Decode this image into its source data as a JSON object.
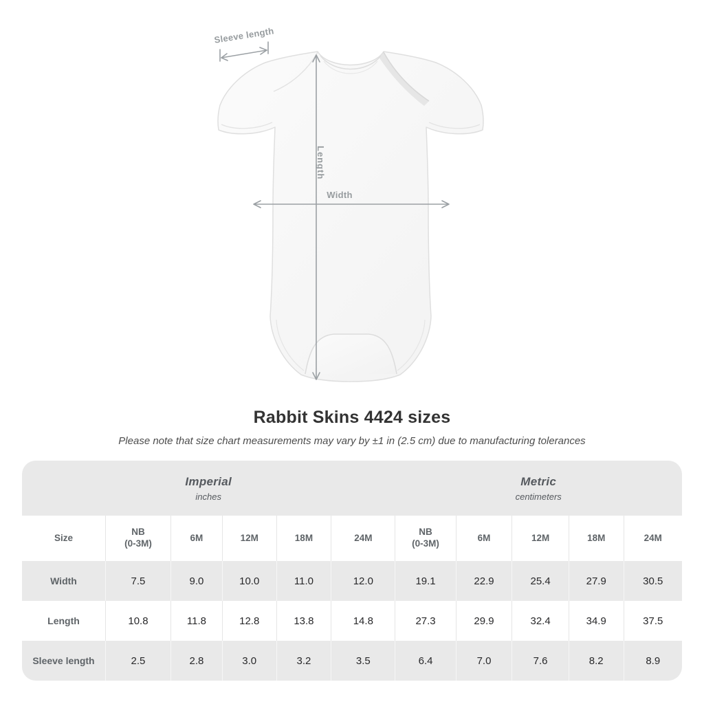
{
  "diagram": {
    "labels": {
      "sleeve": "Sleeve length",
      "length": "Length",
      "width": "Width"
    }
  },
  "header": {
    "title": "Rabbit Skins 4424 sizes",
    "subtitle": "Please note that size chart measurements may vary by ±1 in (2.5 cm) due to manufacturing tolerances"
  },
  "chart_data": {
    "type": "table",
    "title": "Rabbit Skins 4424 sizes",
    "unit_groups": [
      {
        "label": "Imperial",
        "sublabel": "inches",
        "span": 6
      },
      {
        "label": "Metric",
        "sublabel": "centimeters",
        "span": 5
      }
    ],
    "corner_header": "Size",
    "column_headers": [
      "NB (0-3M)",
      "6M",
      "12M",
      "18M",
      "24M",
      "NB (0-3M)",
      "6M",
      "12M",
      "18M",
      "24M"
    ],
    "rows": [
      {
        "label": "Width",
        "values": [
          "7.5",
          "9.0",
          "10.0",
          "11.0",
          "12.0",
          "19.1",
          "22.9",
          "25.4",
          "27.9",
          "30.5"
        ]
      },
      {
        "label": "Length",
        "values": [
          "10.8",
          "11.8",
          "12.8",
          "13.8",
          "14.8",
          "27.3",
          "29.9",
          "32.4",
          "34.9",
          "37.5"
        ]
      },
      {
        "label": "Sleeve length",
        "values": [
          "2.5",
          "2.8",
          "3.0",
          "3.2",
          "3.5",
          "6.4",
          "7.0",
          "7.6",
          "8.2",
          "8.9"
        ]
      }
    ]
  },
  "colors": {
    "table_band": "#e9e9e9",
    "row_alt": "#e9e9e9",
    "header_text": "#5f6468",
    "value_text": "#28282a",
    "annotation_gray": "#979c9f",
    "title_text": "#333333",
    "garment_fill": "#f7f7f7",
    "garment_stroke": "#dfdfdf"
  }
}
